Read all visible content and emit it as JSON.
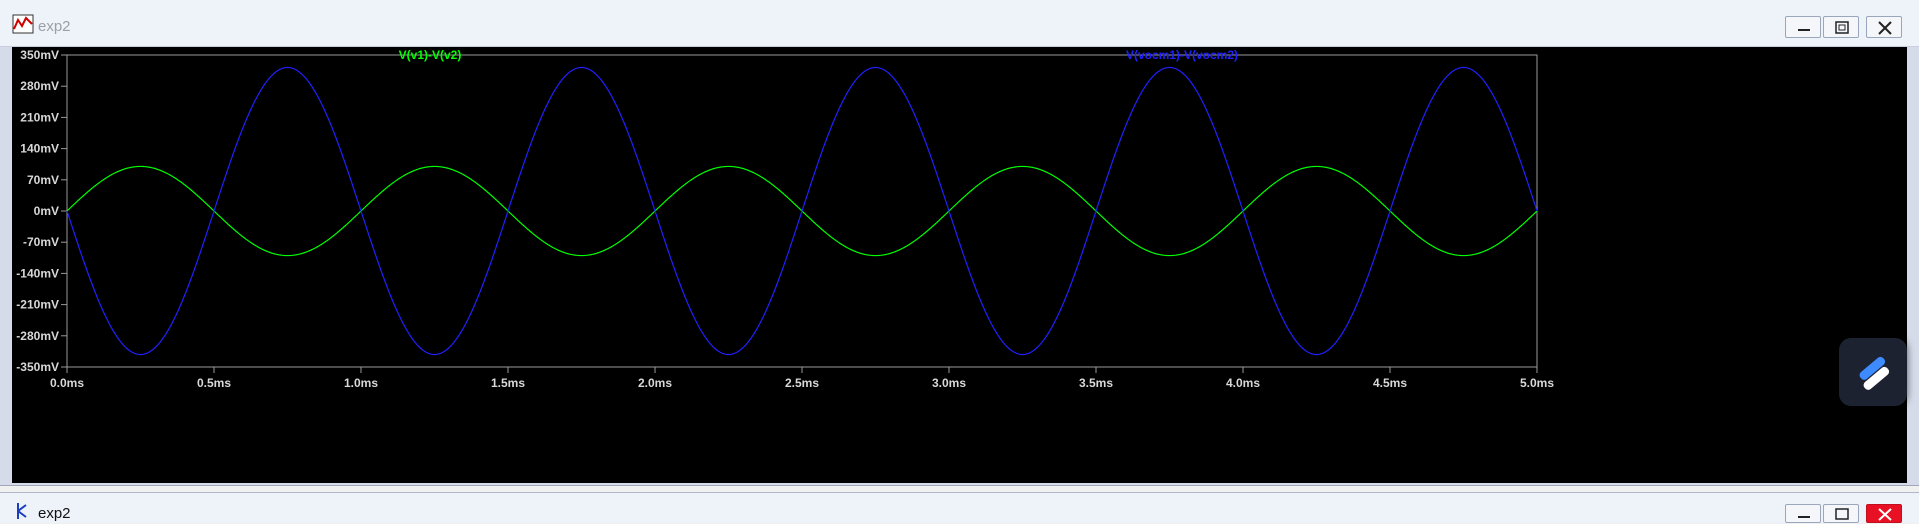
{
  "window": {
    "title": "exp2"
  },
  "bottom_window": {
    "title": "exp2"
  },
  "window_controls": {
    "minimize": "minimize",
    "maximize": "maximize",
    "close": "close"
  },
  "chart_data": {
    "type": "line",
    "title": "",
    "xlabel": "",
    "ylabel": "",
    "xlim": [
      0,
      5
    ],
    "ylim": [
      -350,
      350
    ],
    "x_unit": "ms",
    "y_unit": "mV",
    "x_ticks": [
      "0.0ms",
      "0.5ms",
      "1.0ms",
      "1.5ms",
      "2.0ms",
      "2.5ms",
      "3.0ms",
      "3.5ms",
      "4.0ms",
      "4.5ms",
      "5.0ms"
    ],
    "y_ticks": [
      "350mV",
      "280mV",
      "210mV",
      "140mV",
      "70mV",
      "0mV",
      "-70mV",
      "-140mV",
      "-210mV",
      "-280mV",
      "-350mV"
    ],
    "background": "#000000",
    "series": [
      {
        "name": "V(v1)-V(v2)",
        "color": "#00ff00",
        "shape": "sine",
        "amplitude": 100,
        "period_ms": 1.0,
        "phase": "starts at 0, rises"
      },
      {
        "name": "V(vocm1)-V(vocm2)",
        "color": "#2020ff",
        "shape": "sine",
        "amplitude": 322,
        "period_ms": 1.0,
        "phase": "starts at 0, falls"
      }
    ]
  }
}
